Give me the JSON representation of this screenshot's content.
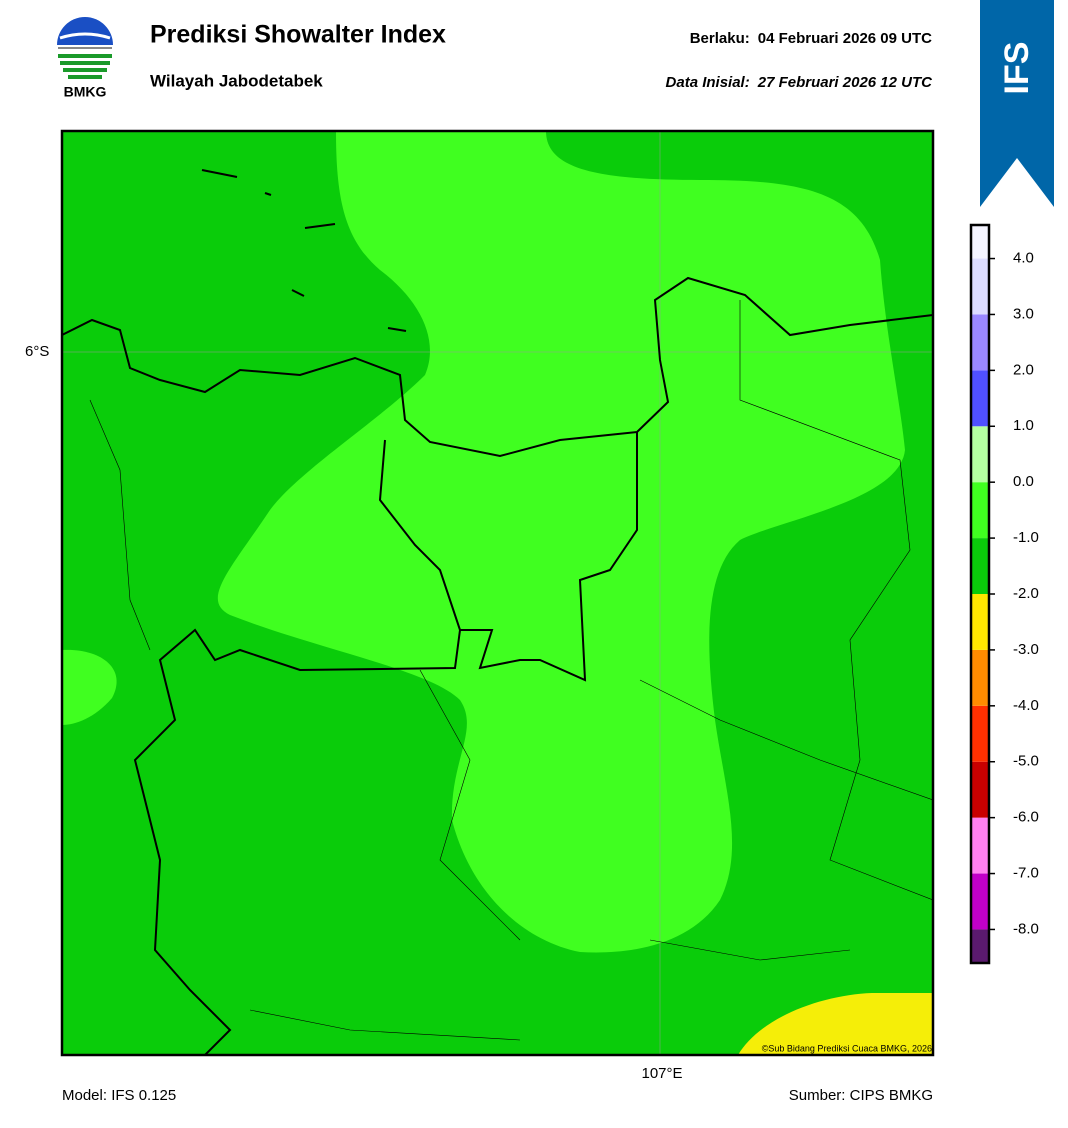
{
  "header": {
    "title": "Prediksi Showalter Index",
    "subtitle": "Wilayah Jabodetabek",
    "valid_label": "Berlaku:",
    "valid_value": "04 Februari 2026 09 UTC",
    "init_label": "Data Inisial:",
    "init_value": "27 Februari 2026 12 UTC"
  },
  "logo_text": "BMKG",
  "badge": "IFS",
  "map": {
    "lat_label": "6°S",
    "lon_label": "107°E",
    "copyright": "©Sub Bidang Prediksi Cuaca BMKG, 2026"
  },
  "colorbar": {
    "lim": [
      -8.6,
      4.6
    ],
    "ticks": [
      {
        "value": -8,
        "label": "-8.0"
      },
      {
        "value": -7,
        "label": "-7.0"
      },
      {
        "value": -6,
        "label": "-6.0"
      },
      {
        "value": -5,
        "label": "-5.0"
      },
      {
        "value": -4,
        "label": "-4.0"
      },
      {
        "value": -3,
        "label": "-3.0"
      },
      {
        "value": -2,
        "label": "-2.0"
      },
      {
        "value": -1,
        "label": "-1.0"
      },
      {
        "value": 0,
        "label": "0.0"
      },
      {
        "value": 1,
        "label": "1.0"
      },
      {
        "value": 2,
        "label": "2.0"
      },
      {
        "value": 3,
        "label": "3.0"
      },
      {
        "value": 4,
        "label": "4.0"
      }
    ],
    "colors": [
      "#5a1a6e",
      "#c000c8",
      "#ff80f0",
      "#c80000",
      "#ff3000",
      "#ff8c00",
      "#ffe600",
      "#0acc0a",
      "#40ff20",
      "#b4ffa0",
      "#5050ff",
      "#9a88ff",
      "#dcdcff",
      "#f4f4ff"
    ]
  },
  "footer": {
    "model": "Model: IFS 0.125",
    "source": "Sumber: CIPS BMKG"
  }
}
